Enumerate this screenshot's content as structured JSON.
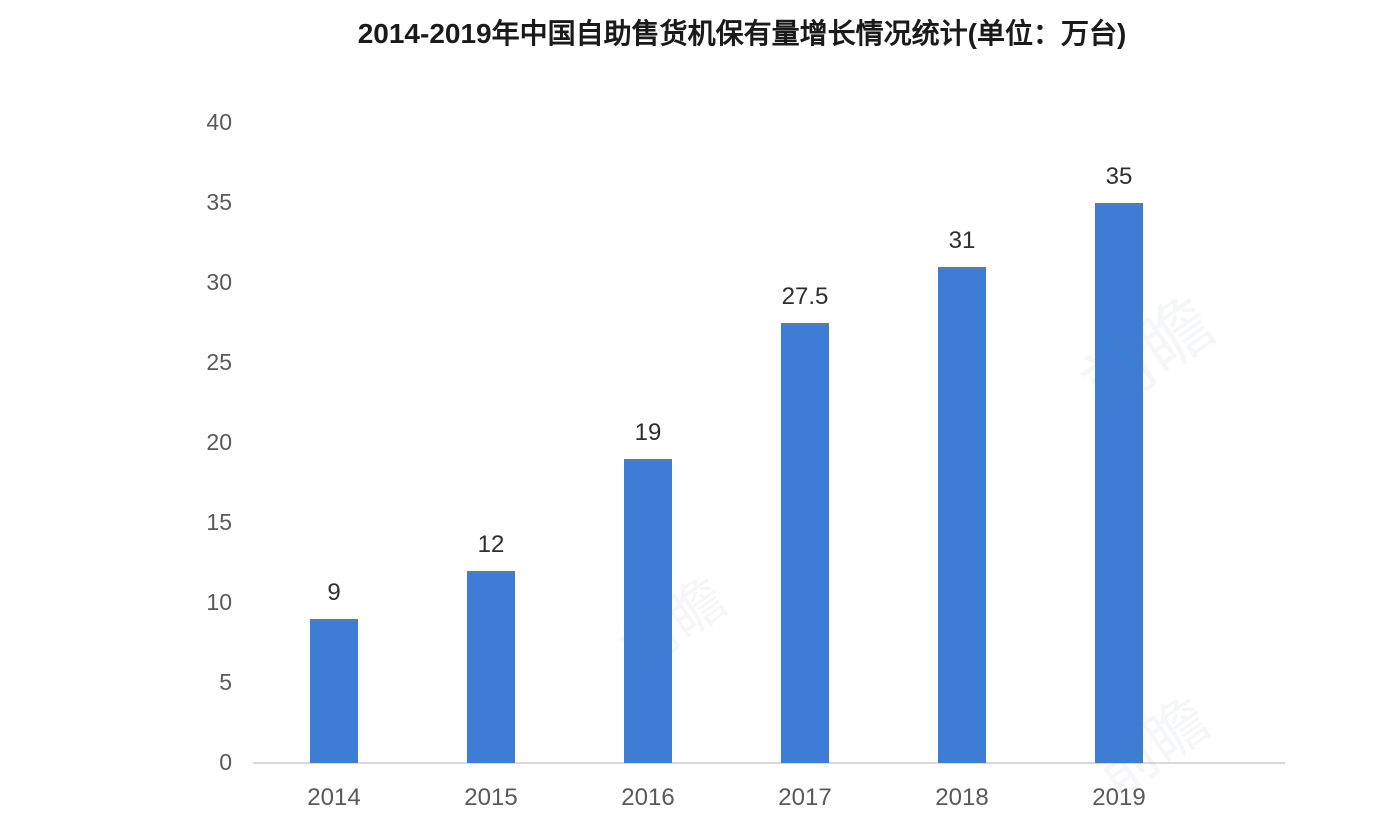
{
  "chart_data": {
    "type": "bar",
    "title": "2014-2019年中国自助售货机保有量增长情况统计(单位：万台)",
    "categories": [
      "2014",
      "2015",
      "2016",
      "2017",
      "2018",
      "2019"
    ],
    "values": [
      9,
      12,
      19,
      27.5,
      31,
      35
    ],
    "value_labels": [
      "9",
      "12",
      "19",
      "27.5",
      "31",
      "35"
    ],
    "xlabel": "",
    "ylabel": "",
    "unit": "万台",
    "ylim": [
      0,
      40
    ],
    "y_ticks": [
      0,
      5,
      10,
      15,
      20,
      25,
      30,
      35,
      40
    ],
    "grid": false,
    "legend_position": "none"
  },
  "colors": {
    "bar": "#3E7DD6",
    "bar_top_edge": "#5E7B9D",
    "axis_line": "#D9D9D9",
    "tick_label": "#595959",
    "value_label": "#2E2E2E",
    "title": "#1A1A1A",
    "background": "#FFFFFF"
  },
  "watermarks": [
    {
      "text": "前瞻"
    },
    {
      "text": "前瞻"
    },
    {
      "text": "前瞻"
    }
  ]
}
